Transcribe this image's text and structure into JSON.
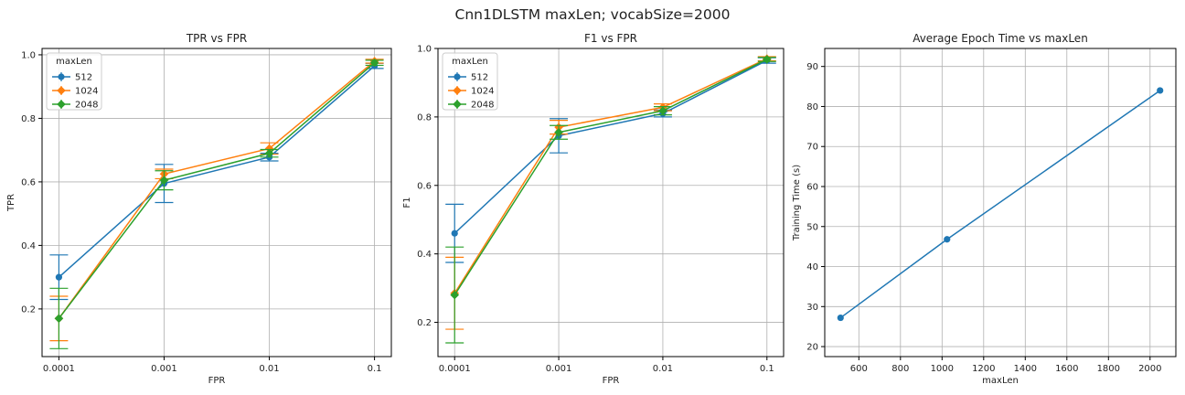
{
  "figure": {
    "title": "Cnn1DLSTM maxLen; vocabSize=2000"
  },
  "colors": {
    "s512": "#1f77b4",
    "s1024": "#ff7f0e",
    "s2048": "#2ca02c",
    "grid": "#b0b0b0"
  },
  "chart_data": [
    {
      "type": "line",
      "title": "TPR vs FPR",
      "xlabel": "FPR",
      "ylabel": "TPR",
      "x_scale": "log",
      "categories": [
        "0.0001",
        "0.001",
        "0.01",
        "0.1"
      ],
      "ylim": [
        0.05,
        1.02
      ],
      "yticks": [
        0.2,
        0.4,
        0.6,
        0.8,
        1.0
      ],
      "ytick_labels": [
        "0.2",
        "0.4",
        "0.6",
        "0.8",
        "1.0"
      ],
      "grid": true,
      "legend": {
        "title": "maxLen",
        "placement": "top-left"
      },
      "series": [
        {
          "name": "512",
          "color": "#1f77b4",
          "marker": "o",
          "values": [
            0.3,
            0.595,
            0.678,
            0.965
          ],
          "errors": [
            0.07,
            0.06,
            0.012,
            0.008
          ]
        },
        {
          "name": "1024",
          "color": "#ff7f0e",
          "marker": "D",
          "values": [
            0.17,
            0.625,
            0.705,
            0.98
          ],
          "errors": [
            0.07,
            0.015,
            0.018,
            0.006
          ]
        },
        {
          "name": "2048",
          "color": "#2ca02c",
          "marker": "D",
          "values": [
            0.17,
            0.605,
            0.69,
            0.975
          ],
          "errors": [
            0.095,
            0.03,
            0.012,
            0.008
          ]
        }
      ]
    },
    {
      "type": "line",
      "title": "F1 vs FPR",
      "xlabel": "FPR",
      "ylabel": "F1",
      "x_scale": "log",
      "categories": [
        "0.0001",
        "0.001",
        "0.01",
        "0.1"
      ],
      "ylim": [
        0.1,
        1.0
      ],
      "yticks": [
        0.2,
        0.4,
        0.6,
        0.8,
        1.0
      ],
      "ytick_labels": [
        "0.2",
        "0.4",
        "0.6",
        "0.8",
        "1.0"
      ],
      "grid": true,
      "legend": {
        "title": "maxLen",
        "placement": "top-left"
      },
      "series": [
        {
          "name": "512",
          "color": "#1f77b4",
          "marker": "o",
          "values": [
            0.46,
            0.745,
            0.81,
            0.965
          ],
          "errors": [
            0.085,
            0.05,
            0.01,
            0.008
          ]
        },
        {
          "name": "1024",
          "color": "#ff7f0e",
          "marker": "D",
          "values": [
            0.285,
            0.77,
            0.828,
            0.97
          ],
          "errors": [
            0.105,
            0.02,
            0.01,
            0.006
          ]
        },
        {
          "name": "2048",
          "color": "#2ca02c",
          "marker": "D",
          "values": [
            0.28,
            0.755,
            0.818,
            0.968
          ],
          "errors": [
            0.14,
            0.02,
            0.012,
            0.006
          ]
        }
      ]
    },
    {
      "type": "line",
      "title": "Average Epoch Time vs maxLen",
      "xlabel": "maxLen",
      "ylabel": "Training Time (s)",
      "xlim": [
        436,
        2124
      ],
      "ylim": [
        17.5,
        94.5
      ],
      "xticks": [
        600,
        800,
        1000,
        1200,
        1400,
        1600,
        1800,
        2000
      ],
      "xtick_labels": [
        "600",
        "800",
        "1000",
        "1200",
        "1400",
        "1600",
        "1800",
        "2000"
      ],
      "yticks": [
        20,
        30,
        40,
        50,
        60,
        70,
        80,
        90
      ],
      "ytick_labels": [
        "20",
        "30",
        "40",
        "50",
        "60",
        "70",
        "80",
        "90"
      ],
      "grid": true,
      "series": [
        {
          "color": "#1f77b4",
          "marker": "o",
          "x": [
            512,
            1024,
            2048
          ],
          "values": [
            27.2,
            46.8,
            84.0
          ]
        }
      ]
    }
  ]
}
